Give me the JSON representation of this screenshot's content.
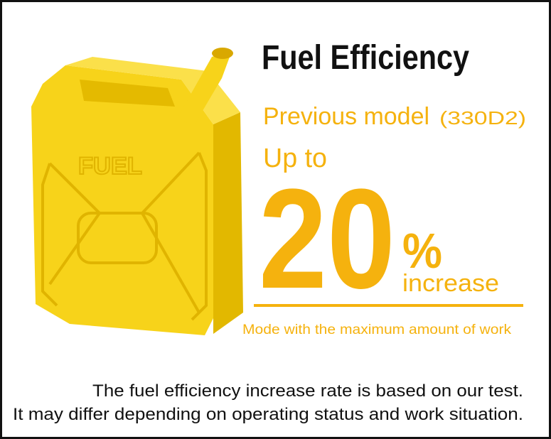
{
  "can_label": "FUEL",
  "title": "Fuel Efficiency",
  "comparison": {
    "label": "Previous model",
    "model": "(330D2)"
  },
  "prefix": "Up to",
  "figure": {
    "number": "20",
    "unit": "%",
    "word": "increase"
  },
  "note": "Mode with the maximum amount of work",
  "footnote": [
    "The fuel efficiency increase rate is based on our test.",
    "It may differ depending on operating status and work situation."
  ]
}
